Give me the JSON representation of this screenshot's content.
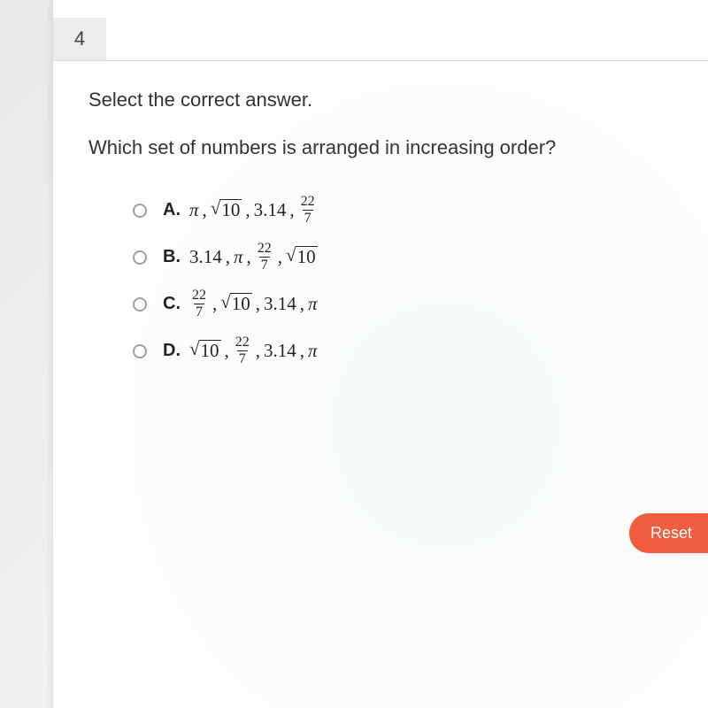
{
  "question_number": "4",
  "instruction": "Select the correct answer.",
  "prompt": "Which set of numbers is arranged in increasing order?",
  "options": {
    "A": {
      "label": "A.",
      "items": [
        "pi",
        "sqrt10",
        "3.14",
        "frac22_7"
      ]
    },
    "B": {
      "label": "B.",
      "items": [
        "3.14",
        "pi",
        "frac22_7",
        "sqrt10"
      ]
    },
    "C": {
      "label": "C.",
      "items": [
        "frac22_7",
        "sqrt10",
        "3.14",
        "pi"
      ]
    },
    "D": {
      "label": "D.",
      "items": [
        "sqrt10",
        "frac22_7",
        "3.14",
        "pi"
      ]
    }
  },
  "tokens": {
    "pi": "π",
    "3.14": "3.14",
    "sqrt10_arg": "10",
    "frac22_7_num": "22",
    "frac22_7_den": "7",
    "separator": ",",
    "sqrt_sign": "√"
  },
  "reset_label": "Reset",
  "style": {
    "background": "#fdfdfb",
    "qnum_bg": "#ececec",
    "text_color": "#333333",
    "radio_border": "#9aa0a6",
    "reset_bg": "#f15a3c",
    "reset_fg": "#ffffff",
    "body_font": "Arial",
    "math_font": "Times New Roman",
    "instruction_fontsize": 22,
    "option_fontsize": 20,
    "math_fontsize": 21,
    "frac_fontsize": 16
  }
}
